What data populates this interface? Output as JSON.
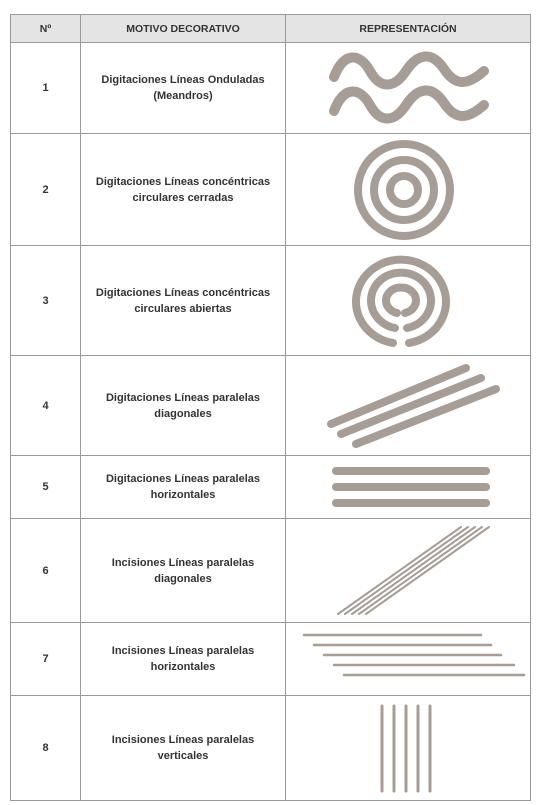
{
  "table": {
    "header": [
      "Nº",
      "MOTIVO DECORATIVO",
      "REPRESENTACIÓN"
    ],
    "rows": [
      [
        "1",
        "Digitaciones Líneas Onduladas (Meandros)"
      ],
      [
        "2",
        "Digitaciones Líneas concéntricas circulares cerradas"
      ],
      [
        "3",
        "Digitaciones Líneas concéntricas circulares abiertas"
      ],
      [
        "4",
        "Digitaciones Líneas paralelas diagonales"
      ],
      [
        "5",
        "Digitaciones Líneas paralelas horizontales"
      ],
      [
        "6",
        "Incisiones Líneas paralelas diagonales"
      ],
      [
        "7",
        "Incisiones Líneas paralelas horizontales"
      ],
      [
        "8",
        "Incisiones Líneas paralelas verticales"
      ]
    ]
  }
}
